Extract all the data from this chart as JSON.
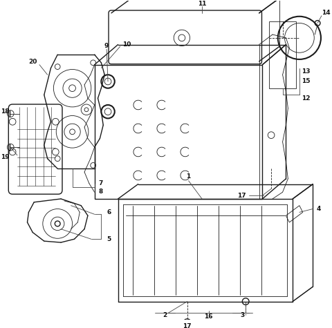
{
  "background_color": "#ffffff",
  "line_color": "#1a1a1a",
  "label_color": "#111111",
  "figsize": [
    4.8,
    4.75
  ],
  "dpi": 100,
  "lw_main": 1.0,
  "lw_thin": 0.6,
  "lw_thick": 1.5,
  "label_fs": 6.5
}
